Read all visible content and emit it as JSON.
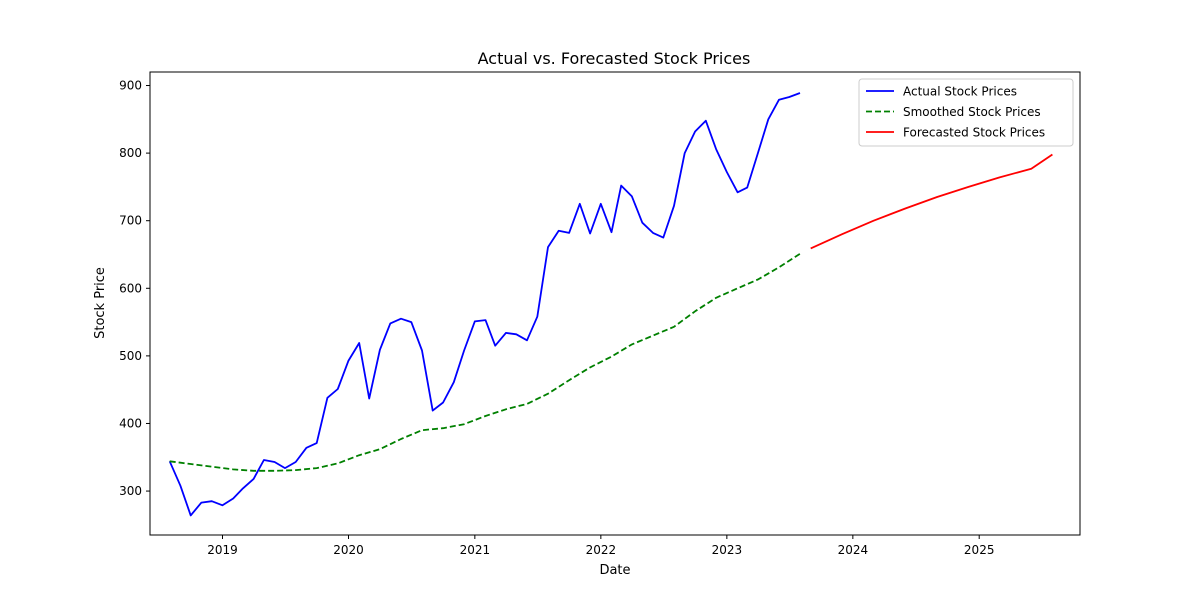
{
  "chart_data": {
    "type": "line",
    "title": "Actual vs. Forecasted Stock Prices",
    "xlabel": "Date",
    "ylabel": "Stock Price",
    "x_ticks": [
      "2019",
      "2020",
      "2021",
      "2022",
      "2023",
      "2024",
      "2025"
    ],
    "y_ticks": [
      300,
      400,
      500,
      600,
      700,
      800,
      900
    ],
    "xlim": [
      "2018-06-05",
      "2025-10-20"
    ],
    "ylim": [
      235,
      920
    ],
    "grid": false,
    "legend_position": "top-right",
    "series": [
      {
        "name": "Actual Stock Prices",
        "color": "#0000ff",
        "style": "solid",
        "points": [
          [
            "2018-08-01",
            344
          ],
          [
            "2018-09-01",
            308
          ],
          [
            "2018-10-01",
            264
          ],
          [
            "2018-11-01",
            283
          ],
          [
            "2018-12-01",
            285
          ],
          [
            "2019-01-01",
            279
          ],
          [
            "2019-02-01",
            289
          ],
          [
            "2019-03-01",
            304
          ],
          [
            "2019-04-01",
            318
          ],
          [
            "2019-05-01",
            346
          ],
          [
            "2019-06-01",
            343
          ],
          [
            "2019-07-01",
            334
          ],
          [
            "2019-08-01",
            343
          ],
          [
            "2019-09-01",
            364
          ],
          [
            "2019-10-01",
            371
          ],
          [
            "2019-11-01",
            438
          ],
          [
            "2019-12-01",
            451
          ],
          [
            "2020-01-01",
            493
          ],
          [
            "2020-02-01",
            519
          ],
          [
            "2020-03-01",
            437
          ],
          [
            "2020-04-01",
            509
          ],
          [
            "2020-05-01",
            548
          ],
          [
            "2020-06-01",
            555
          ],
          [
            "2020-07-01",
            550
          ],
          [
            "2020-08-01",
            508
          ],
          [
            "2020-09-01",
            419
          ],
          [
            "2020-10-01",
            431
          ],
          [
            "2020-11-01",
            461
          ],
          [
            "2020-12-01",
            508
          ],
          [
            "2021-01-01",
            551
          ],
          [
            "2021-02-01",
            553
          ],
          [
            "2021-03-01",
            515
          ],
          [
            "2021-04-01",
            534
          ],
          [
            "2021-05-01",
            532
          ],
          [
            "2021-06-01",
            523
          ],
          [
            "2021-07-01",
            558
          ],
          [
            "2021-08-01",
            661
          ],
          [
            "2021-09-01",
            685
          ],
          [
            "2021-10-01",
            682
          ],
          [
            "2021-11-01",
            725
          ],
          [
            "2021-12-01",
            681
          ],
          [
            "2022-01-01",
            725
          ],
          [
            "2022-02-01",
            683
          ],
          [
            "2022-03-01",
            752
          ],
          [
            "2022-04-01",
            736
          ],
          [
            "2022-05-01",
            697
          ],
          [
            "2022-06-01",
            682
          ],
          [
            "2022-07-01",
            675
          ],
          [
            "2022-08-01",
            722
          ],
          [
            "2022-09-01",
            800
          ],
          [
            "2022-10-01",
            832
          ],
          [
            "2022-11-01",
            848
          ],
          [
            "2022-12-01",
            806
          ],
          [
            "2023-01-01",
            772
          ],
          [
            "2023-02-01",
            742
          ],
          [
            "2023-03-01",
            749
          ],
          [
            "2023-04-01",
            800
          ],
          [
            "2023-05-01",
            850
          ],
          [
            "2023-06-01",
            879
          ],
          [
            "2023-07-01",
            883
          ],
          [
            "2023-08-01",
            889
          ]
        ]
      },
      {
        "name": "Smoothed Stock Prices",
        "color": "#008000",
        "style": "dashed",
        "points": [
          [
            "2018-08-01",
            344
          ],
          [
            "2018-10-01",
            340
          ],
          [
            "2018-12-01",
            336
          ],
          [
            "2019-02-01",
            332
          ],
          [
            "2019-04-01",
            330
          ],
          [
            "2019-06-01",
            330
          ],
          [
            "2019-08-01",
            331
          ],
          [
            "2019-10-01",
            334
          ],
          [
            "2019-12-01",
            341
          ],
          [
            "2020-02-01",
            353
          ],
          [
            "2020-04-01",
            362
          ],
          [
            "2020-06-01",
            377
          ],
          [
            "2020-08-01",
            390
          ],
          [
            "2020-10-01",
            393
          ],
          [
            "2020-12-01",
            399
          ],
          [
            "2021-02-01",
            411
          ],
          [
            "2021-04-01",
            421
          ],
          [
            "2021-06-01",
            429
          ],
          [
            "2021-08-01",
            444
          ],
          [
            "2021-10-01",
            464
          ],
          [
            "2021-12-01",
            483
          ],
          [
            "2022-02-01",
            499
          ],
          [
            "2022-04-01",
            517
          ],
          [
            "2022-06-01",
            530
          ],
          [
            "2022-08-01",
            543
          ],
          [
            "2022-10-01",
            566
          ],
          [
            "2022-12-01",
            586
          ],
          [
            "2023-02-01",
            600
          ],
          [
            "2023-04-01",
            613
          ],
          [
            "2023-06-01",
            631
          ],
          [
            "2023-08-01",
            651
          ]
        ]
      },
      {
        "name": "Forecasted Stock Prices",
        "color": "#ff0000",
        "style": "solid",
        "points": [
          [
            "2023-09-01",
            659
          ],
          [
            "2023-12-01",
            680
          ],
          [
            "2024-03-01",
            700
          ],
          [
            "2024-06-01",
            718
          ],
          [
            "2024-09-01",
            735
          ],
          [
            "2024-12-01",
            750
          ],
          [
            "2025-03-01",
            764
          ],
          [
            "2025-06-01",
            777
          ],
          [
            "2025-08-01",
            798
          ]
        ]
      }
    ]
  }
}
